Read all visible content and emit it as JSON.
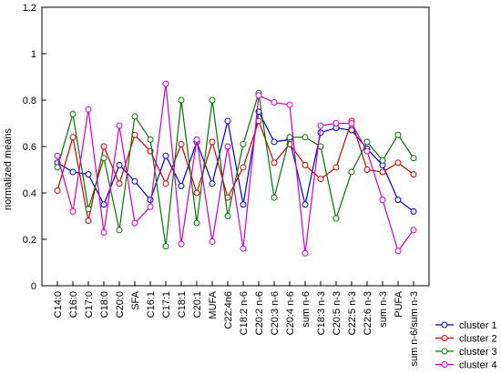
{
  "chart_data": {
    "type": "line",
    "ylabel": "normalized means",
    "xlabel": "",
    "ylim": [
      0,
      1.2
    ],
    "yticks": [
      0,
      0.2,
      0.4,
      0.6,
      0.8,
      1,
      1.2
    ],
    "ytick_labels": [
      "0",
      "0.2",
      "0.4",
      "0.6",
      "0.8",
      "1",
      "1.2"
    ],
    "grid": false,
    "legend_position": "bottom-right",
    "categories": [
      "C14:0",
      "C16:0",
      "C17:0",
      "C18:0",
      "C20:0",
      "SFA",
      "C16:1",
      "C17:1",
      "C18:1",
      "C20:1",
      "MUFA",
      "C22:4n6",
      "C18:2 n-6",
      "C20:2 n-6",
      "C20:3 n-6",
      "C20:4 n-6",
      "sum n-6",
      "C18:3 n-3",
      "C20:5 n-3",
      "C22:5 n-3",
      "C22:6 n-3",
      "sum n-3",
      "PUFA",
      "sum n-6/sum n-3"
    ],
    "series": [
      {
        "name": "cluster 1",
        "color": "#0000cc",
        "values": [
          0.53,
          0.49,
          0.48,
          0.35,
          0.52,
          0.45,
          0.37,
          0.56,
          0.43,
          0.62,
          0.44,
          0.71,
          0.35,
          0.75,
          0.62,
          0.63,
          0.35,
          0.66,
          0.68,
          0.67,
          0.59,
          0.52,
          0.37,
          0.32
        ]
      },
      {
        "name": "cluster 2",
        "color": "#cc0000",
        "values": [
          0.41,
          0.64,
          0.28,
          0.6,
          0.44,
          0.65,
          0.58,
          0.44,
          0.61,
          0.4,
          0.62,
          0.38,
          0.51,
          0.71,
          0.53,
          0.61,
          0.52,
          0.46,
          0.51,
          0.71,
          0.5,
          0.49,
          0.53,
          0.48
        ]
      },
      {
        "name": "cluster 3",
        "color": "#007700",
        "values": [
          0.51,
          0.74,
          0.33,
          0.55,
          0.24,
          0.73,
          0.63,
          0.17,
          0.8,
          0.27,
          0.8,
          0.3,
          0.61,
          0.83,
          0.38,
          0.64,
          0.64,
          0.6,
          0.29,
          0.49,
          0.62,
          0.54,
          0.65,
          0.55
        ]
      },
      {
        "name": "cluster 4",
        "color": "#cc00cc",
        "values": [
          0.56,
          0.32,
          0.76,
          0.23,
          0.69,
          0.27,
          0.34,
          0.87,
          0.18,
          0.63,
          0.19,
          0.6,
          0.16,
          0.82,
          0.79,
          0.78,
          0.14,
          0.69,
          0.7,
          0.7,
          0.58,
          0.37,
          0.15,
          0.24
        ]
      }
    ]
  }
}
